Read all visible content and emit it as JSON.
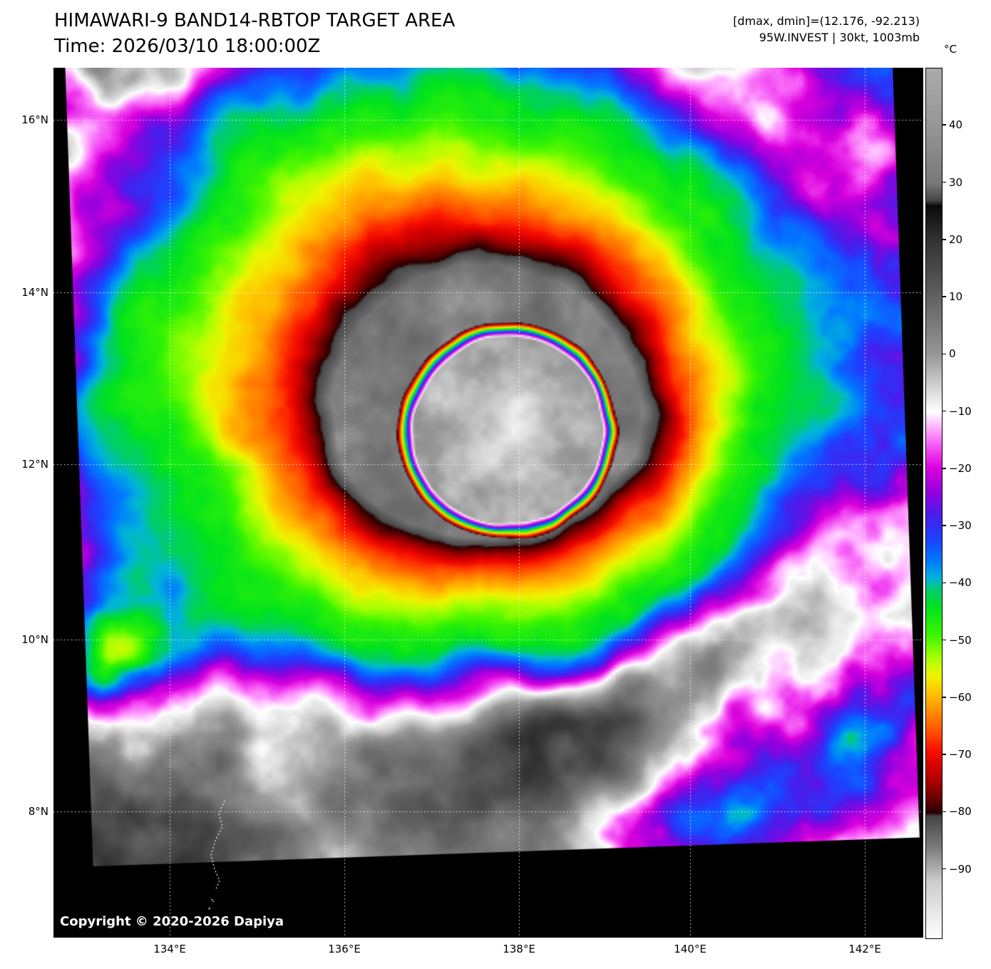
{
  "header": {
    "title": "HIMAWARI-9 BAND14-RBTOP TARGET AREA",
    "time_line": "Time: 2026/03/10 18:00:00Z",
    "dmax_dmin": "[dmax, dmin]=(12.176, -92.213)",
    "storm_info": "95W.INVEST | 30kt, 1003mb"
  },
  "map": {
    "copyright": "Copyright © 2020-2026 Dapiya",
    "lat_labels": [
      "16°N",
      "14°N",
      "12°N",
      "10°N",
      "8°N"
    ],
    "lon_labels": [
      "134°E",
      "136°E",
      "138°E",
      "140°E",
      "142°E"
    ]
  },
  "colorbar": {
    "unit": "°C",
    "tick_labels": [
      "40",
      "30",
      "20",
      "10",
      "0",
      "−10",
      "−20",
      "−30",
      "−40",
      "−50",
      "−60",
      "−70",
      "−80",
      "−90"
    ],
    "tick_values": [
      40,
      30,
      20,
      10,
      0,
      -10,
      -20,
      -30,
      -40,
      -50,
      -60,
      -70,
      -80,
      -90
    ],
    "value_max": 50,
    "value_min": -102
  }
}
